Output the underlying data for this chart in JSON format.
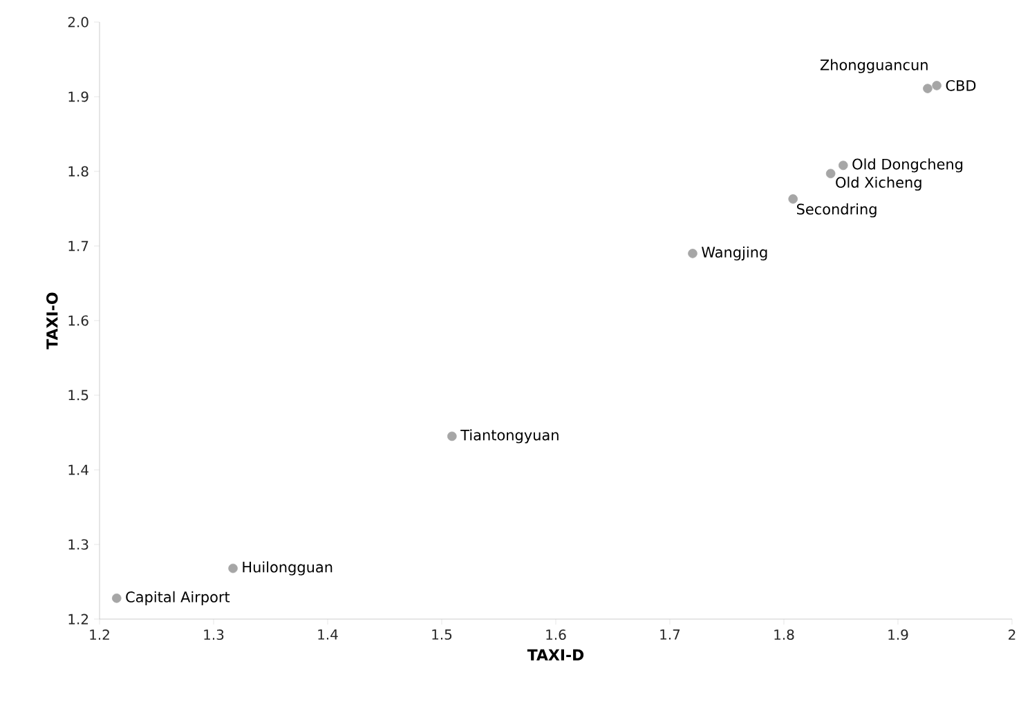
{
  "chart_data": {
    "type": "scatter",
    "xlabel": "TAXI-D",
    "ylabel": "TAXI-O",
    "series": [
      {
        "color": "#a6a6a6",
        "x": [
          1.215,
          1.317,
          1.509,
          1.72,
          1.808,
          1.841,
          1.852,
          1.926,
          1.934
        ],
        "values": [
          1.228,
          1.268,
          1.445,
          1.69,
          1.763,
          1.797,
          1.808,
          1.911,
          1.915
        ]
      }
    ],
    "xlim": [
      1.2,
      2
    ],
    "ylim": [
      1.2,
      2
    ],
    "xticks": [
      1.2,
      1.3,
      1.4,
      1.5,
      1.6,
      1.7,
      1.8,
      1.9,
      2
    ],
    "yticks": [
      1.2,
      1.3,
      1.4,
      1.5,
      1.6,
      1.7,
      1.8,
      1.9,
      {
        "value": 2,
        "label": "2.0"
      }
    ],
    "marker": "circle",
    "grid": false,
    "annotations": [
      {
        "text": "Capital Airport",
        "x": 1.215,
        "y": 1.228
      },
      {
        "text": "Huilongguan",
        "x": 1.317,
        "y": 1.268
      },
      {
        "text": "Tiantongyuan",
        "x": 1.509,
        "y": 1.445
      },
      {
        "text": "Wangjing",
        "x": 1.72,
        "y": 1.69
      },
      {
        "text": "Secondring",
        "x": 1.808,
        "y": 1.763
      },
      {
        "text": "Old Xicheng",
        "x": 1.841,
        "y": 1.797
      },
      {
        "text": "Old Dongcheng",
        "x": 1.852,
        "y": 1.808
      },
      {
        "text": "Zhongguancun",
        "x": 1.926,
        "y": 1.911
      },
      {
        "text": "CBD",
        "x": 1.934,
        "y": 1.915
      }
    ]
  }
}
